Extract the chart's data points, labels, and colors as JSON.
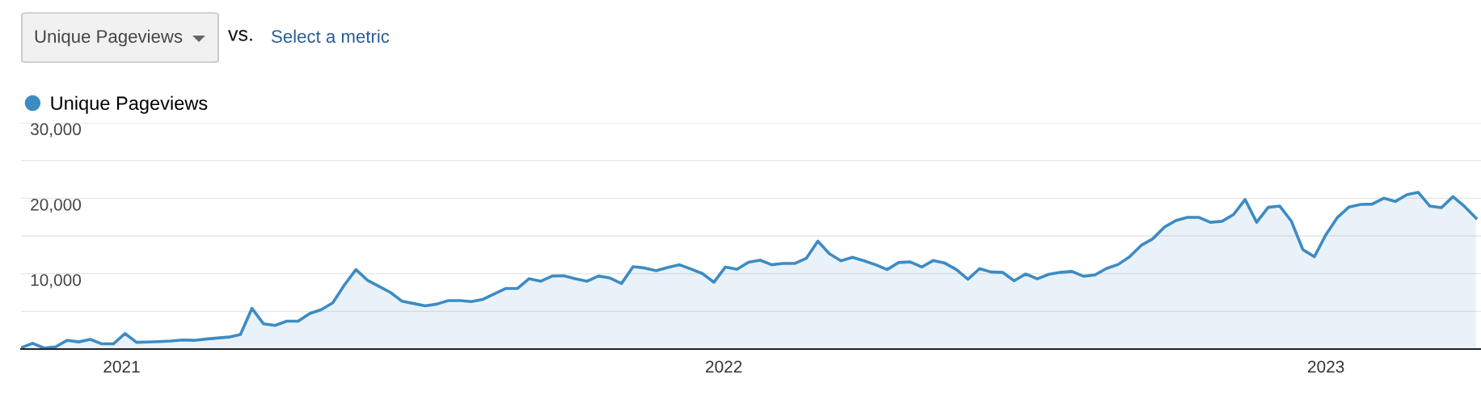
{
  "chart_data": {
    "type": "area",
    "x": [
      "2020-11-01",
      "2020-11-08",
      "2020-11-15",
      "2020-11-22",
      "2020-11-29",
      "2020-12-06",
      "2020-12-13",
      "2020-12-20",
      "2020-12-27",
      "2021-01-03",
      "2021-01-10",
      "2021-01-17",
      "2021-01-24",
      "2021-01-31",
      "2021-02-07",
      "2021-02-14",
      "2021-02-21",
      "2021-02-28",
      "2021-03-07",
      "2021-03-14",
      "2021-03-21",
      "2021-03-28",
      "2021-04-04",
      "2021-04-11",
      "2021-04-18",
      "2021-04-25",
      "2021-05-02",
      "2021-05-09",
      "2021-05-16",
      "2021-05-23",
      "2021-05-30",
      "2021-06-06",
      "2021-06-13",
      "2021-06-20",
      "2021-06-27",
      "2021-07-04",
      "2021-07-11",
      "2021-07-18",
      "2021-07-25",
      "2021-08-01",
      "2021-08-08",
      "2021-08-15",
      "2021-08-22",
      "2021-08-29",
      "2021-09-05",
      "2021-09-12",
      "2021-09-19",
      "2021-09-26",
      "2021-10-03",
      "2021-10-10",
      "2021-10-17",
      "2021-10-24",
      "2021-10-31",
      "2021-11-07",
      "2021-11-14",
      "2021-11-21",
      "2021-11-28",
      "2021-12-05",
      "2021-12-12",
      "2021-12-19",
      "2021-12-26",
      "2022-01-02",
      "2022-01-09",
      "2022-01-16",
      "2022-01-23",
      "2022-01-30",
      "2022-02-06",
      "2022-02-13",
      "2022-02-20",
      "2022-02-27",
      "2022-03-06",
      "2022-03-13",
      "2022-03-20",
      "2022-03-27",
      "2022-04-03",
      "2022-04-10",
      "2022-04-17",
      "2022-04-24",
      "2022-05-01",
      "2022-05-08",
      "2022-05-15",
      "2022-05-22",
      "2022-05-29",
      "2022-06-05",
      "2022-06-12",
      "2022-06-19",
      "2022-06-26",
      "2022-07-03",
      "2022-07-10",
      "2022-07-17",
      "2022-07-24",
      "2022-07-31",
      "2022-08-07",
      "2022-08-14",
      "2022-08-21",
      "2022-08-28",
      "2022-09-04",
      "2022-09-11",
      "2022-09-18",
      "2022-09-25",
      "2022-10-02",
      "2022-10-09",
      "2022-10-16",
      "2022-10-23",
      "2022-10-30",
      "2022-11-06",
      "2022-11-13",
      "2022-11-20",
      "2022-11-27",
      "2022-12-04",
      "2022-12-11",
      "2022-12-18",
      "2022-12-25",
      "2023-01-01",
      "2023-01-08",
      "2023-01-15",
      "2023-01-22",
      "2023-01-29",
      "2023-02-05",
      "2023-02-12",
      "2023-02-19",
      "2023-02-26",
      "2023-03-05",
      "2023-03-12",
      "2023-03-19",
      "2023-03-26",
      "2023-04-02"
    ],
    "series": [
      {
        "name": "Unique Pageviews",
        "color": "#3d8bc4",
        "values": [
          170,
          770,
          130,
          300,
          1160,
          950,
          1290,
          690,
          690,
          2060,
          900,
          940,
          990,
          1070,
          1200,
          1160,
          1330,
          1460,
          1590,
          1930,
          5400,
          3340,
          3130,
          3690,
          3690,
          4710,
          5230,
          6130,
          8490,
          10540,
          9130,
          8310,
          7500,
          6340,
          6040,
          5740,
          5960,
          6430,
          6430,
          6300,
          6600,
          7330,
          8040,
          8040,
          9330,
          8990,
          9680,
          9720,
          9330,
          8990,
          9680,
          9420,
          8690,
          10920,
          10750,
          10400,
          10830,
          11180,
          10620,
          10020,
          8860,
          10880,
          10580,
          11520,
          11780,
          11180,
          11350,
          11350,
          12030,
          14310,
          12640,
          11700,
          12170,
          11700,
          11180,
          10540,
          11480,
          11560,
          10880,
          11740,
          11400,
          10540,
          9250,
          10660,
          10220,
          10170,
          9050,
          9960,
          9310,
          9910,
          10170,
          10300,
          9660,
          9830,
          10690,
          11210,
          12240,
          13750,
          14610,
          16160,
          17030,
          17460,
          17460,
          16810,
          16940,
          17840,
          19830,
          16810,
          18790,
          18960,
          16980,
          13190,
          12240,
          15170,
          17460,
          18840,
          19180,
          19220,
          20000,
          19570,
          20470,
          20780,
          18960,
          18750,
          20210,
          18920,
          17370
        ]
      }
    ],
    "xlim": [
      "2020-11-01",
      "2023-04-05"
    ],
    "xticks": [
      {
        "value": "2021-01-01",
        "label": "2021"
      },
      {
        "value": "2022-01-01",
        "label": "2022"
      },
      {
        "value": "2023-01-01",
        "label": "2023"
      }
    ],
    "ylim": [
      0,
      30000
    ],
    "yticks": [
      {
        "value": 5000,
        "label": null
      },
      {
        "value": 10000,
        "label": "10,000"
      },
      {
        "value": 15000,
        "label": null
      },
      {
        "value": 20000,
        "label": "20,000"
      },
      {
        "value": 25000,
        "label": null
      },
      {
        "value": 30000,
        "label": "30,000"
      }
    ],
    "grid": "y",
    "legend": "top left",
    "marker": "none",
    "line_style": "solid",
    "annotations": [
      "Unique Pageviews",
      "vs.",
      "Select a metric"
    ]
  }
}
